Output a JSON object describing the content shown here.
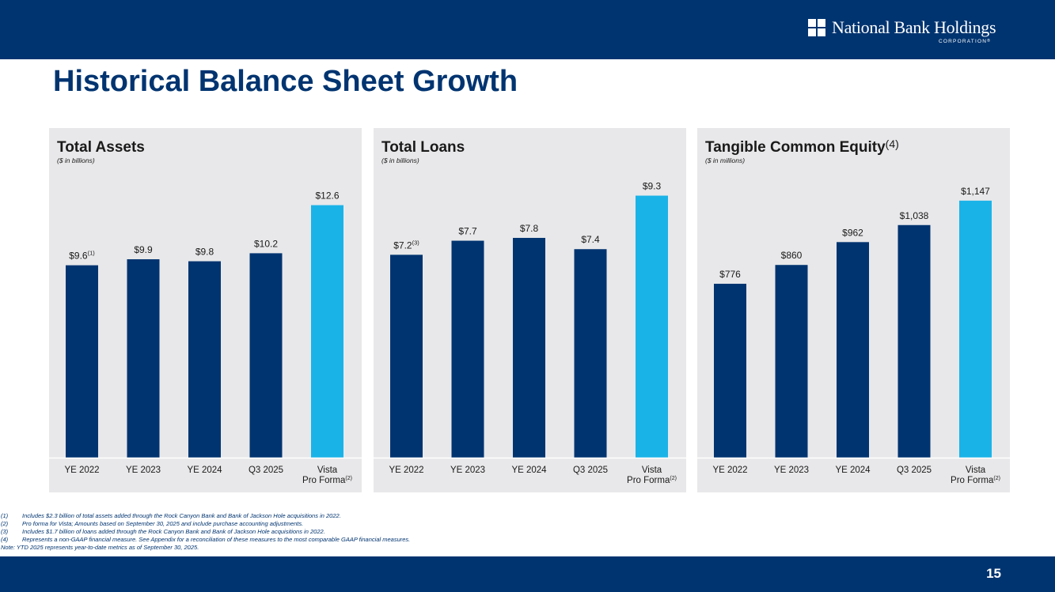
{
  "header": {
    "logo_name": "National Bank Holdings",
    "logo_sub": "CORPORATION",
    "logo_trademark": "®"
  },
  "title": "Historical Balance Sheet Growth",
  "colors": {
    "primary": "#003470",
    "accent": "#1ab3e8",
    "panel": "#e8e8ea"
  },
  "chart_data": [
    {
      "type": "bar",
      "title": "Total Assets",
      "title_sup": "",
      "subtitle": "($ in billions)",
      "categories": [
        "YE 2022",
        "YE 2023",
        "YE 2024",
        "Q3 2025",
        "Vista|Pro Forma"
      ],
      "category_sups": [
        "",
        "",
        "",
        "",
        "(2)"
      ],
      "values": [
        9.6,
        9.9,
        9.8,
        10.2,
        12.6
      ],
      "value_labels": [
        "$9.6",
        "$9.9",
        "$9.8",
        "$10.2",
        "$12.6"
      ],
      "value_sups": [
        "(1)",
        "",
        "",
        "",
        ""
      ],
      "highlight_index": 4,
      "ylim": [
        0,
        14.2
      ]
    },
    {
      "type": "bar",
      "title": "Total Loans",
      "title_sup": "",
      "subtitle": "($ in billions)",
      "categories": [
        "YE 2022",
        "YE 2023",
        "YE 2024",
        "Q3 2025",
        "Vista|Pro Forma"
      ],
      "category_sups": [
        "",
        "",
        "",
        "",
        "(2)"
      ],
      "values": [
        7.2,
        7.7,
        7.8,
        7.4,
        9.3
      ],
      "value_labels": [
        "$7.2",
        "$7.7",
        "$7.8",
        "$7.4",
        "$9.3"
      ],
      "value_sups": [
        "(3)",
        "",
        "",
        "",
        ""
      ],
      "highlight_index": 4,
      "ylim": [
        0,
        10.1
      ]
    },
    {
      "type": "bar",
      "title": "Tangible Common Equity",
      "title_sup": "(4)",
      "subtitle": "($ in millions)",
      "categories": [
        "YE 2022",
        "YE 2023",
        "YE 2024",
        "Q3 2025",
        "Vista|Pro Forma"
      ],
      "category_sups": [
        "",
        "",
        "",
        "",
        "(2)"
      ],
      "values": [
        776,
        860,
        962,
        1038,
        1147
      ],
      "value_labels": [
        "$776",
        "$860",
        "$962",
        "$1,038",
        "$1,147"
      ],
      "value_sups": [
        "",
        "",
        "",
        "",
        ""
      ],
      "highlight_index": 4,
      "ylim": [
        0,
        1270
      ]
    }
  ],
  "footnotes": [
    {
      "num": "(1)",
      "text": "Includes $2.3 billion of total assets added through the Rock Canyon Bank and Bank of Jackson Hole acquisitions in 2022."
    },
    {
      "num": "(2)",
      "text": "Pro forma for Vista; Amounts based on September 30, 2025 and include purchase accounting adjustments."
    },
    {
      "num": "(3)",
      "text": "Includes $1.7 billion of loans added through the Rock Canyon Bank and Bank of Jackson Hole acquisitions in 2022."
    },
    {
      "num": "(4)",
      "text": "Represents a non-GAAP financial measure.  See Appendix for a reconciliation of these measures to the most comparable GAAP financial measures."
    }
  ],
  "note": "Note: YTD 2025 represents year-to-date metrics as of September 30, 2025.",
  "page_number": "15"
}
